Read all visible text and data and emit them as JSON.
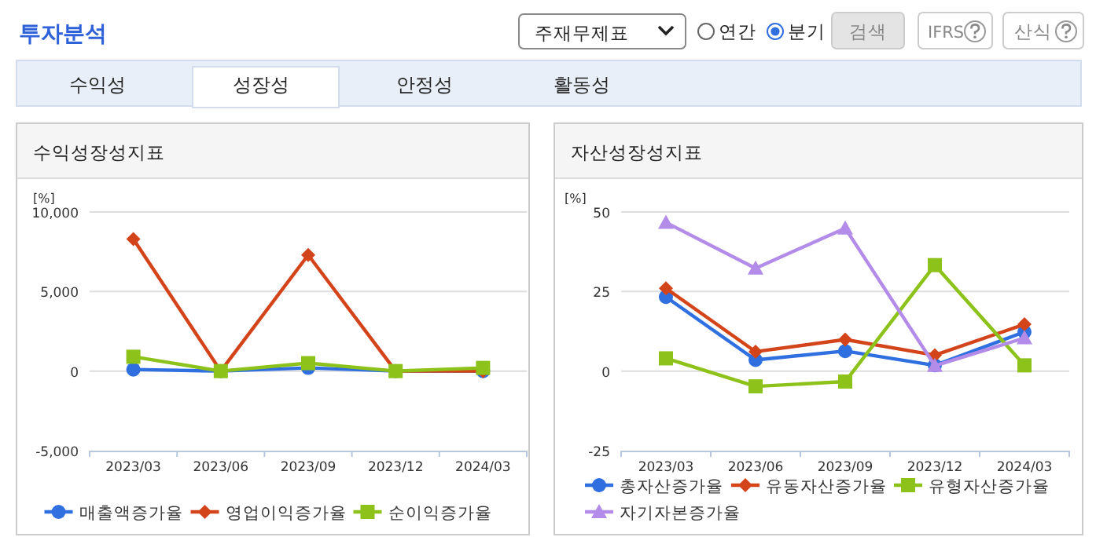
{
  "chart_data": [
    {
      "type": "other",
      "title": "투자분석",
      "annotations": [
        "주재무제표",
        "연간",
        "분기",
        "검색",
        "IFRS",
        "산식",
        "수익성",
        "성장성",
        "안정성",
        "활동성"
      ]
    },
    {
      "type": "line",
      "title": "수익성장성지표",
      "ylabel": "[%]",
      "categories": [
        "2023/03",
        "2023/06",
        "2023/09",
        "2023/12",
        "2024/03"
      ],
      "ylim": [
        -5000,
        10000
      ],
      "yticks": [
        {
          "value": -5000,
          "label": "-5,000"
        },
        0,
        {
          "value": 5000,
          "label": "5,000"
        },
        {
          "value": 10000,
          "label": "10,000"
        }
      ],
      "grid": "y",
      "legend": "bottom",
      "series": [
        {
          "name": "매출액증가율",
          "color": "#2f6fe0",
          "marker": "circle",
          "values": [
            100,
            0,
            200,
            0,
            0
          ]
        },
        {
          "name": "영업이익증가율",
          "color": "#d4441a",
          "marker": "diamond",
          "values": [
            8300,
            0,
            7300,
            0,
            0
          ]
        },
        {
          "name": "순이익증가율",
          "color": "#8cc21a",
          "marker": "square",
          "values": [
            900,
            0,
            500,
            0,
            200
          ]
        }
      ]
    },
    {
      "type": "line",
      "title": "자산성장성지표",
      "ylabel": "[%]",
      "categories": [
        "2023/03",
        "2023/06",
        "2023/09",
        "2023/12",
        "2024/03"
      ],
      "ylim": [
        -25,
        50
      ],
      "yticks": [
        -25,
        0,
        25,
        50
      ],
      "grid": "y",
      "legend": "bottom",
      "series": [
        {
          "name": "총자산증가율",
          "color": "#2f6fe0",
          "marker": "circle",
          "values": [
            23.3,
            3.5,
            6.3,
            1.8,
            12.3
          ]
        },
        {
          "name": "유동자산증가율",
          "color": "#d4441a",
          "marker": "diamond",
          "values": [
            26,
            6.1,
            9.9,
            5,
            14.7
          ]
        },
        {
          "name": "유형자산증가율",
          "color": "#8cc21a",
          "marker": "square",
          "values": [
            4,
            -4.8,
            -3.3,
            33.3,
            1.8
          ]
        },
        {
          "name": "자기자본증가율",
          "color": "#b38be8",
          "marker": "triangle",
          "values": [
            46.7,
            32.3,
            44.9,
            1.7,
            10.4
          ]
        }
      ]
    }
  ]
}
